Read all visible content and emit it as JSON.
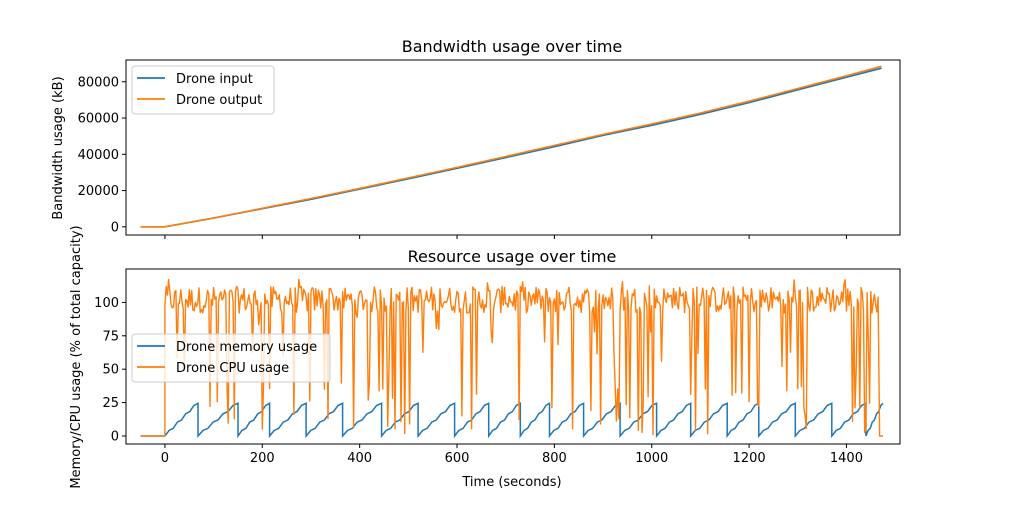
{
  "chart_data": [
    {
      "type": "line",
      "title": "Bandwidth usage over time",
      "xlabel": "",
      "ylabel": "Bandwidth usage (kB)",
      "xlim": [
        -80,
        1510
      ],
      "ylim": [
        -4500,
        92000
      ],
      "yticks": [
        0,
        20000,
        40000,
        60000,
        80000
      ],
      "ytick_labels": [
        "0",
        "20000",
        "40000",
        "60000",
        "80000"
      ],
      "xticks": [
        0,
        200,
        400,
        600,
        800,
        1000,
        1200,
        1400
      ],
      "xtick_labels_visible": false,
      "legend": "upper-left",
      "series": [
        {
          "name": "Drone input",
          "color": "#1f77b4",
          "x": [
            -50,
            0,
            100,
            200,
            300,
            400,
            500,
            600,
            700,
            800,
            900,
            1000,
            1100,
            1200,
            1300,
            1400,
            1472
          ],
          "y": [
            0,
            0,
            4800,
            10000,
            15200,
            20800,
            26500,
            32200,
            38200,
            44200,
            50400,
            56000,
            62000,
            68500,
            75500,
            82500,
            87500
          ]
        },
        {
          "name": "Drone output",
          "color": "#ff7f0e",
          "x": [
            -50,
            0,
            100,
            200,
            300,
            400,
            500,
            600,
            700,
            800,
            900,
            1000,
            1100,
            1200,
            1300,
            1400,
            1472
          ],
          "y": [
            0,
            0,
            4900,
            10200,
            15600,
            21200,
            27000,
            32800,
            38800,
            44900,
            51000,
            56700,
            62800,
            69300,
            76300,
            83300,
            88500
          ]
        }
      ]
    },
    {
      "type": "line",
      "title": "Resource usage over time",
      "xlabel": "Time (seconds)",
      "ylabel": "Memory/CPU usage (% of total capacity)",
      "xlim": [
        -80,
        1510
      ],
      "ylim": [
        -6,
        125
      ],
      "yticks": [
        0,
        25,
        50,
        75,
        100
      ],
      "ytick_labels": [
        "0",
        "25",
        "50",
        "75",
        "100"
      ],
      "xticks": [
        0,
        200,
        400,
        600,
        800,
        1000,
        1200,
        1400
      ],
      "xtick_labels": [
        "0",
        "200",
        "400",
        "600",
        "800",
        "1000",
        "1200",
        "1400"
      ],
      "legend": "center-left",
      "series": [
        {
          "name": "Drone memory usage",
          "color": "#1f77b4",
          "sawtooth_resets": [
            -50,
            0,
            68,
            150,
            215,
            290,
            365,
            445,
            520,
            595,
            665,
            730,
            790,
            860,
            935,
            1010,
            1080,
            1155,
            1220,
            1295,
            1370,
            1440,
            1475
          ],
          "peak": 25
        },
        {
          "name": "Drone CPU usage",
          "color": "#ff7f0e",
          "baseline_until": 0,
          "typical_range": [
            100,
            112
          ],
          "max": 118,
          "dips_to": 0
        }
      ]
    }
  ]
}
